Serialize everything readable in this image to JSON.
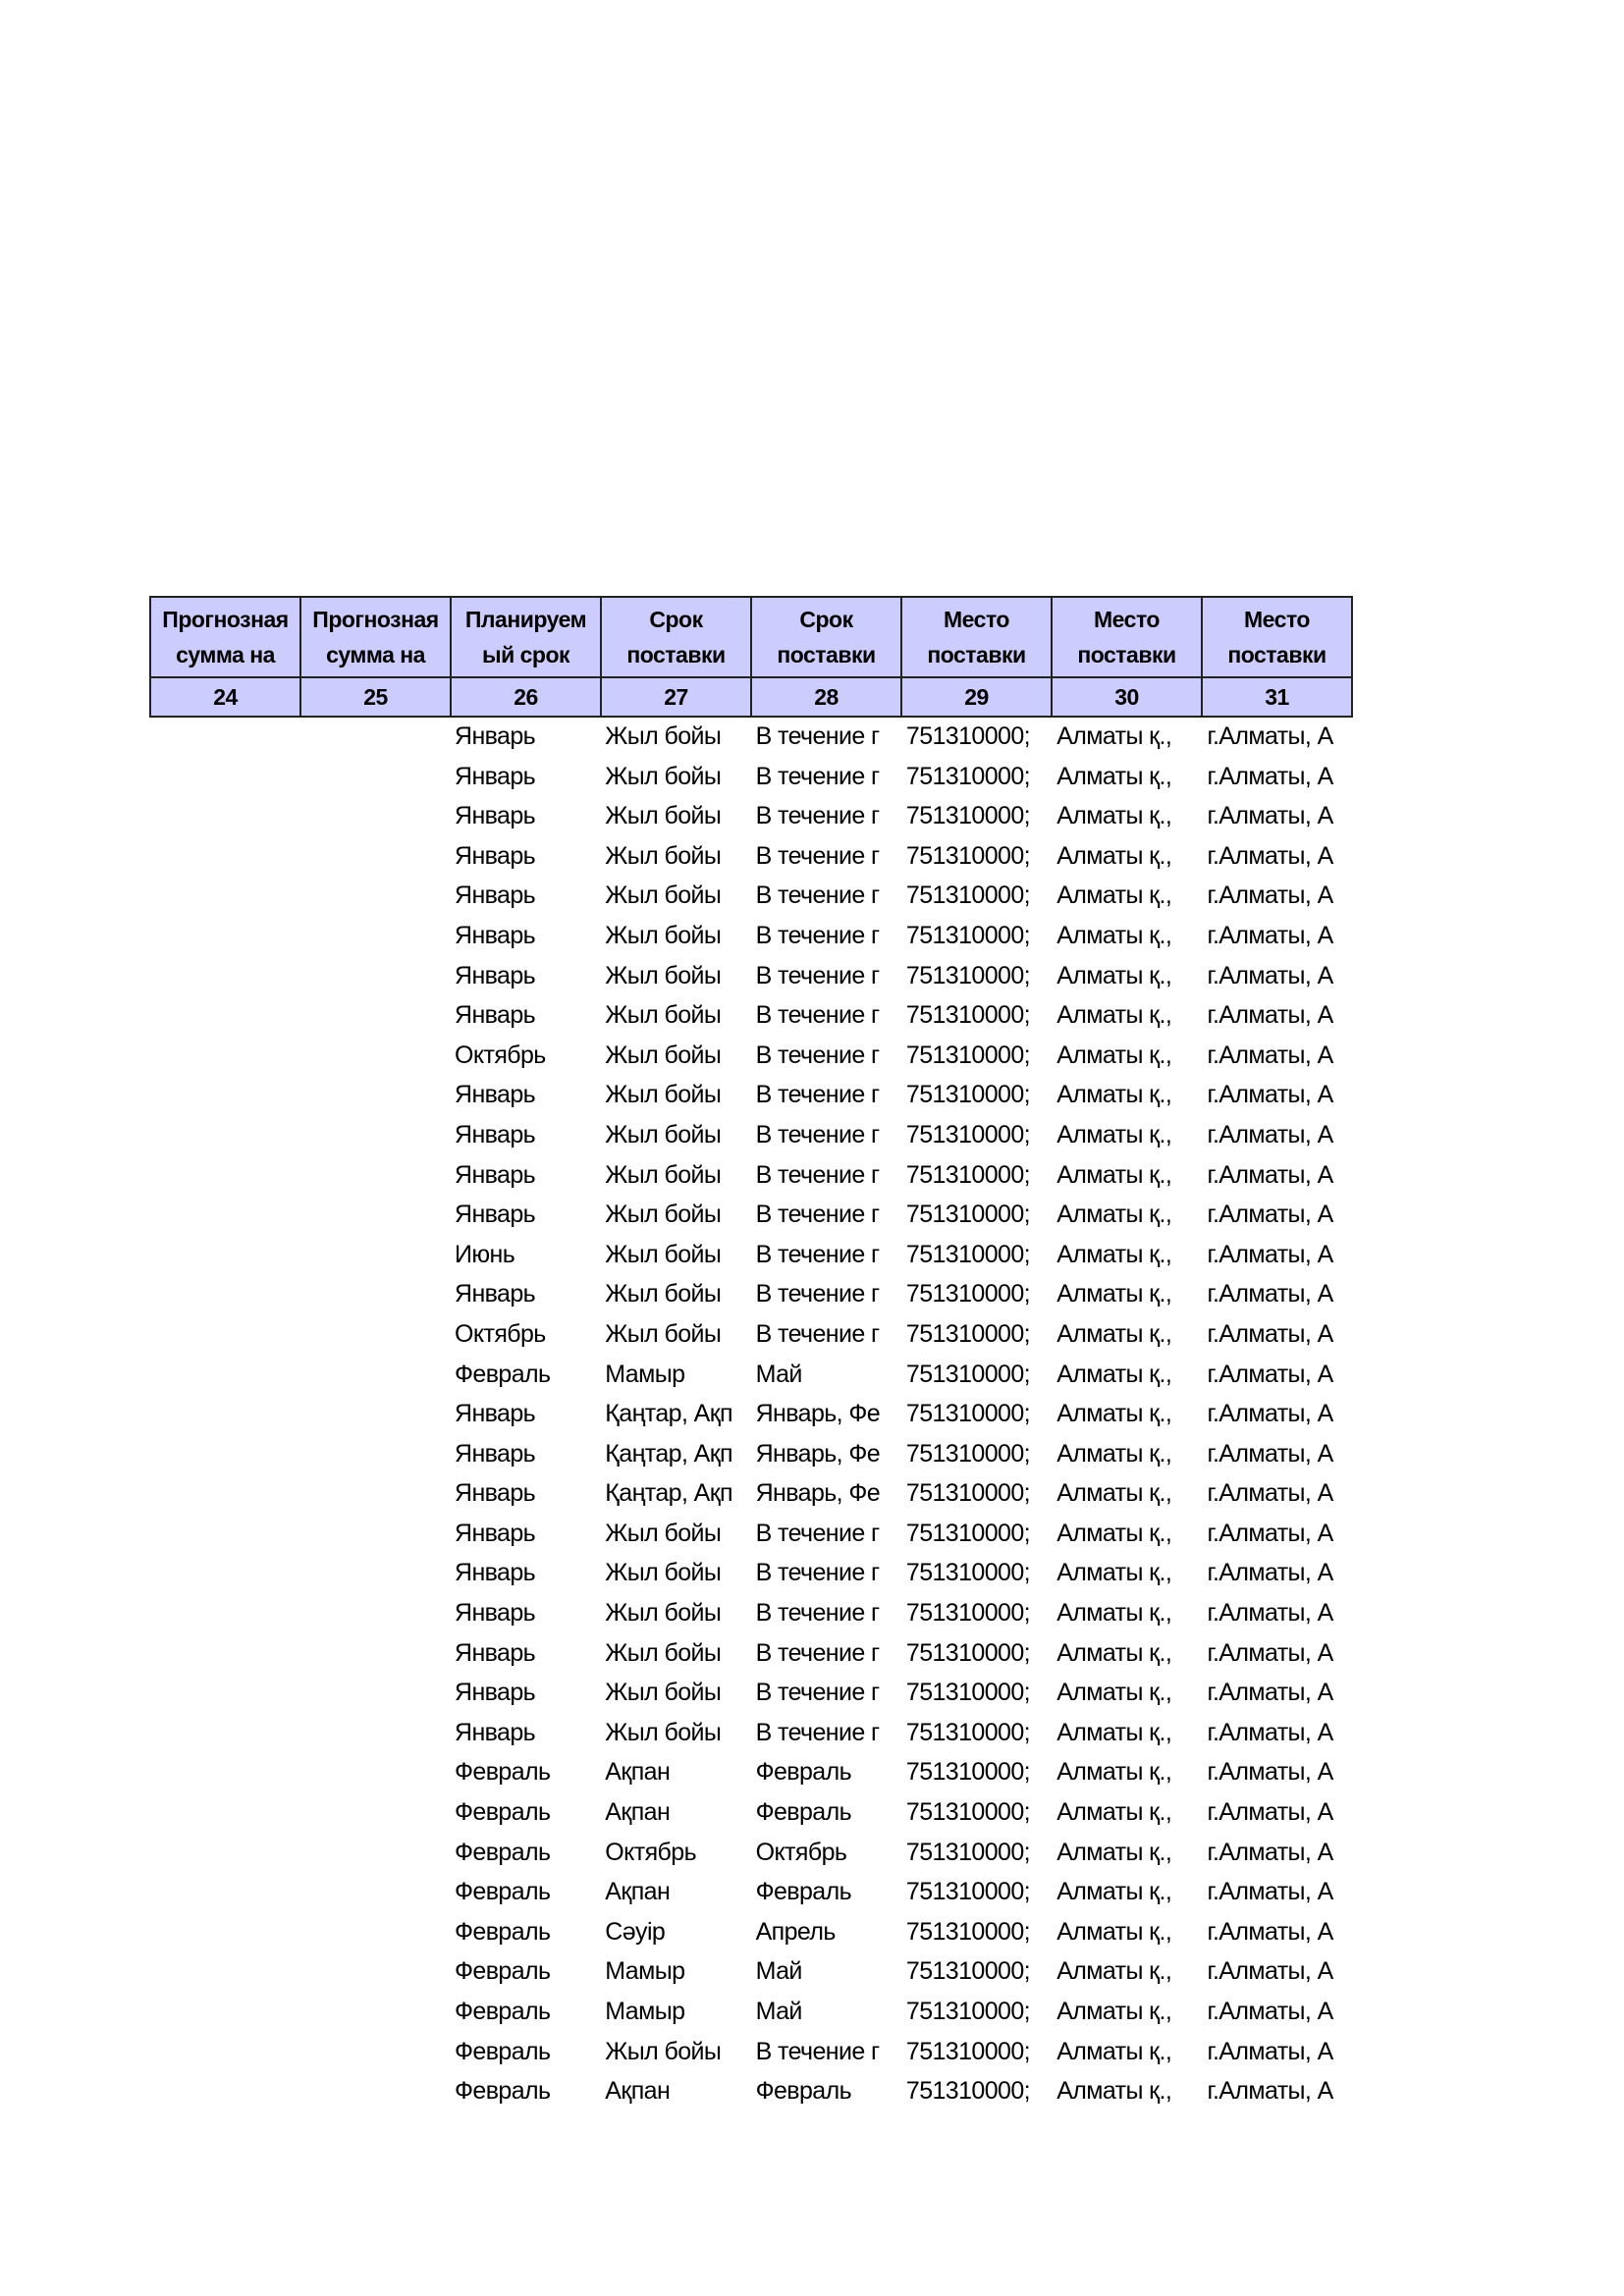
{
  "header": {
    "titles": [
      "Прогнозная\nсумма на",
      "Прогнозная\nсумма на",
      "Планируем\nый срок",
      "Срок\nпоставки",
      "Срок\nпоставки",
      "Место\nпоставки",
      "Место\nпоставки",
      "Место\nпоставки"
    ],
    "numbers": [
      "24",
      "25",
      "26",
      "27",
      "28",
      "29",
      "30",
      "31"
    ]
  },
  "rows": [
    [
      "Январь",
      "Жыл бойы",
      "В течение г",
      "751310000;",
      "Алматы қ.,",
      "г.Алматы, А"
    ],
    [
      "Январь",
      "Жыл бойы",
      "В течение г",
      "751310000;",
      "Алматы қ.,",
      "г.Алматы, А"
    ],
    [
      "Январь",
      "Жыл бойы",
      "В течение г",
      "751310000;",
      "Алматы қ.,",
      "г.Алматы, А"
    ],
    [
      "Январь",
      "Жыл бойы",
      "В течение г",
      "751310000;",
      "Алматы қ.,",
      "г.Алматы, А"
    ],
    [
      "Январь",
      "Жыл бойы",
      "В течение г",
      "751310000;",
      "Алматы қ.,",
      "г.Алматы, А"
    ],
    [
      "Январь",
      "Жыл бойы",
      "В течение г",
      "751310000;",
      "Алматы қ.,",
      "г.Алматы, А"
    ],
    [
      "Январь",
      "Жыл бойы",
      "В течение г",
      "751310000;",
      "Алматы қ.,",
      "г.Алматы, А"
    ],
    [
      "Январь",
      "Жыл бойы",
      "В течение г",
      "751310000;",
      "Алматы қ.,",
      "г.Алматы, А"
    ],
    [
      "Октябрь",
      "Жыл бойы",
      "В течение г",
      "751310000;",
      "Алматы қ.,",
      "г.Алматы, А"
    ],
    [
      "Январь",
      "Жыл бойы",
      "В течение г",
      "751310000;",
      "Алматы қ.,",
      "г.Алматы, А"
    ],
    [
      "Январь",
      "Жыл бойы",
      "В течение г",
      "751310000;",
      "Алматы қ.,",
      "г.Алматы, А"
    ],
    [
      "Январь",
      "Жыл бойы",
      "В течение г",
      "751310000;",
      "Алматы қ.,",
      "г.Алматы, А"
    ],
    [
      "Январь",
      "Жыл бойы",
      "В течение г",
      "751310000;",
      "Алматы қ.,",
      "г.Алматы, А"
    ],
    [
      "Июнь",
      "Жыл бойы",
      "В течение г",
      "751310000;",
      "Алматы қ.,",
      "г.Алматы, А"
    ],
    [
      "Январь",
      "Жыл бойы",
      "В течение г",
      "751310000;",
      "Алматы қ.,",
      "г.Алматы, А"
    ],
    [
      "Октябрь",
      "Жыл бойы",
      "В течение г",
      "751310000;",
      "Алматы қ.,",
      "г.Алматы, А"
    ],
    [
      "Февраль",
      "Мамыр",
      "Май",
      "751310000;",
      "Алматы қ.,",
      "г.Алматы, А"
    ],
    [
      "Январь",
      "Қаңтар, Ақп",
      "Январь, Фе",
      "751310000;",
      "Алматы қ.,",
      "г.Алматы, А"
    ],
    [
      "Январь",
      "Қаңтар, Ақп",
      "Январь, Фе",
      "751310000;",
      "Алматы қ.,",
      "г.Алматы, А"
    ],
    [
      "Январь",
      "Қаңтар, Ақп",
      "Январь, Фе",
      "751310000;",
      "Алматы қ.,",
      "г.Алматы, А"
    ],
    [
      "Январь",
      "Жыл бойы",
      "В течение г",
      "751310000;",
      "Алматы қ.,",
      "г.Алматы, А"
    ],
    [
      "Январь",
      "Жыл бойы",
      "В течение г",
      "751310000;",
      "Алматы қ.,",
      "г.Алматы, А"
    ],
    [
      "Январь",
      "Жыл бойы",
      "В течение г",
      "751310000;",
      "Алматы қ.,",
      "г.Алматы, А"
    ],
    [
      "Январь",
      "Жыл бойы",
      "В течение г",
      "751310000;",
      "Алматы қ.,",
      "г.Алматы, А"
    ],
    [
      "Январь",
      "Жыл бойы",
      "В течение г",
      "751310000;",
      "Алматы қ.,",
      "г.Алматы, А"
    ],
    [
      "Январь",
      "Жыл бойы",
      "В течение г",
      "751310000;",
      "Алматы қ.,",
      "г.Алматы, А"
    ],
    [
      "Февраль",
      "Ақпан",
      "Февраль",
      "751310000;",
      "Алматы қ.,",
      "г.Алматы, А"
    ],
    [
      "Февраль",
      "Ақпан",
      "Февраль",
      "751310000;",
      "Алматы қ.,",
      "г.Алматы, А"
    ],
    [
      "Февраль",
      "Октябрь",
      "Октябрь",
      "751310000;",
      "Алматы қ.,",
      "г.Алматы, А"
    ],
    [
      "Февраль",
      "Ақпан",
      "Февраль",
      "751310000;",
      "Алматы қ.,",
      "г.Алматы, А"
    ],
    [
      "Февраль",
      "Сәуір",
      "Апрель",
      "751310000;",
      "Алматы қ.,",
      "г.Алматы, А"
    ],
    [
      "Февраль",
      "Мамыр",
      "Май",
      "751310000;",
      "Алматы қ.,",
      "г.Алматы, А"
    ],
    [
      "Февраль",
      "Мамыр",
      "Май",
      "751310000;",
      "Алматы қ.,",
      "г.Алматы, А"
    ],
    [
      "Февраль",
      "Жыл бойы",
      "В течение г",
      "751310000;",
      "Алматы қ.,",
      "г.Алматы, А"
    ],
    [
      "Февраль",
      "Ақпан",
      "Февраль",
      "751310000;",
      "Алматы қ.,",
      "г.Алматы, А"
    ]
  ],
  "colors": {
    "header_bg": "#ccccff",
    "border": "#222222"
  }
}
